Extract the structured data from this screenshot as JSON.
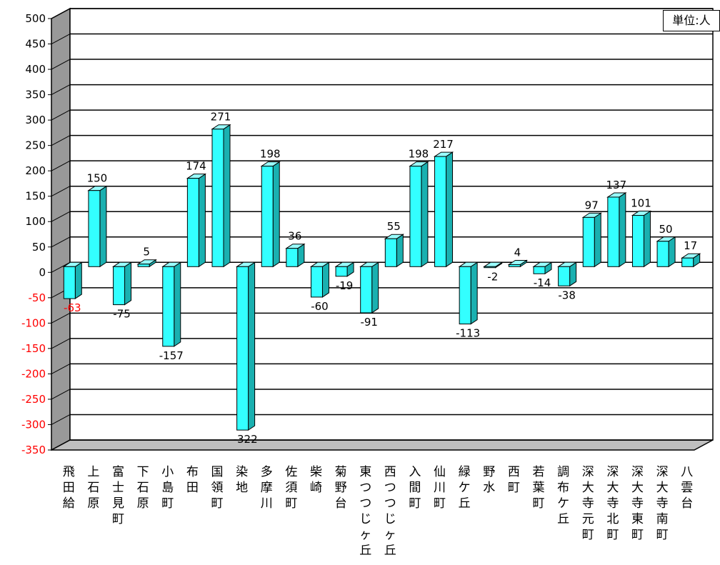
{
  "chart_data": {
    "type": "bar",
    "title": "",
    "xlabel": "",
    "ylabel": "",
    "unit_label": "単位:人",
    "ylim": [
      -350,
      500
    ],
    "yticks": [
      500,
      450,
      400,
      350,
      300,
      250,
      200,
      150,
      100,
      50,
      0,
      -50,
      -100,
      -150,
      -200,
      -250,
      -300,
      -350
    ],
    "yticks_text": [
      "500",
      "450",
      "400",
      "350",
      "300",
      "250",
      "200",
      "150",
      "100",
      "50",
      "0",
      "-50",
      "-100",
      "-150",
      "-200",
      "-250",
      "-300",
      "-350"
    ],
    "grid": true,
    "categories": [
      "飛田給",
      "上石原",
      "富士見町",
      "下石原",
      "小島町",
      "布田",
      "国領町",
      "染地",
      "多摩川",
      "佐須町",
      "柴崎",
      "菊野台",
      "東つつじヶ丘",
      "西つつじヶ丘",
      "入間町",
      "仙川町",
      "緑ケ丘",
      "野水",
      "西町",
      "若葉町",
      "調布ケ丘",
      "深大寺元町",
      "深大寺北町",
      "深大寺東町",
      "深大寺南町",
      "八雲台"
    ],
    "values": [
      -63,
      150,
      -75,
      5,
      -157,
      174,
      271,
      -322,
      198,
      36,
      -60,
      -19,
      -91,
      55,
      198,
      217,
      -113,
      -2,
      4,
      -14,
      -38,
      97,
      137,
      101,
      50,
      17
    ],
    "value_labels": [
      "-63",
      "150",
      "-75",
      "5",
      "-157",
      "174",
      "271",
      "-322",
      "198",
      "36",
      "-60",
      "-19",
      "-91",
      "55",
      "198",
      "217",
      "-113",
      "-2",
      "4",
      "-14",
      "-38",
      "97",
      "137",
      "101",
      "50",
      "17"
    ],
    "colors": {
      "bar_front": "#33ffff",
      "bar_side": "#1ab0b0",
      "bar_top": "#99ffff",
      "left_wall": "#999999",
      "floor": "#bfbfbf",
      "negative_tick": "#ff0000",
      "negative_highlight_label": "#ff0000",
      "text": "#000000"
    }
  }
}
